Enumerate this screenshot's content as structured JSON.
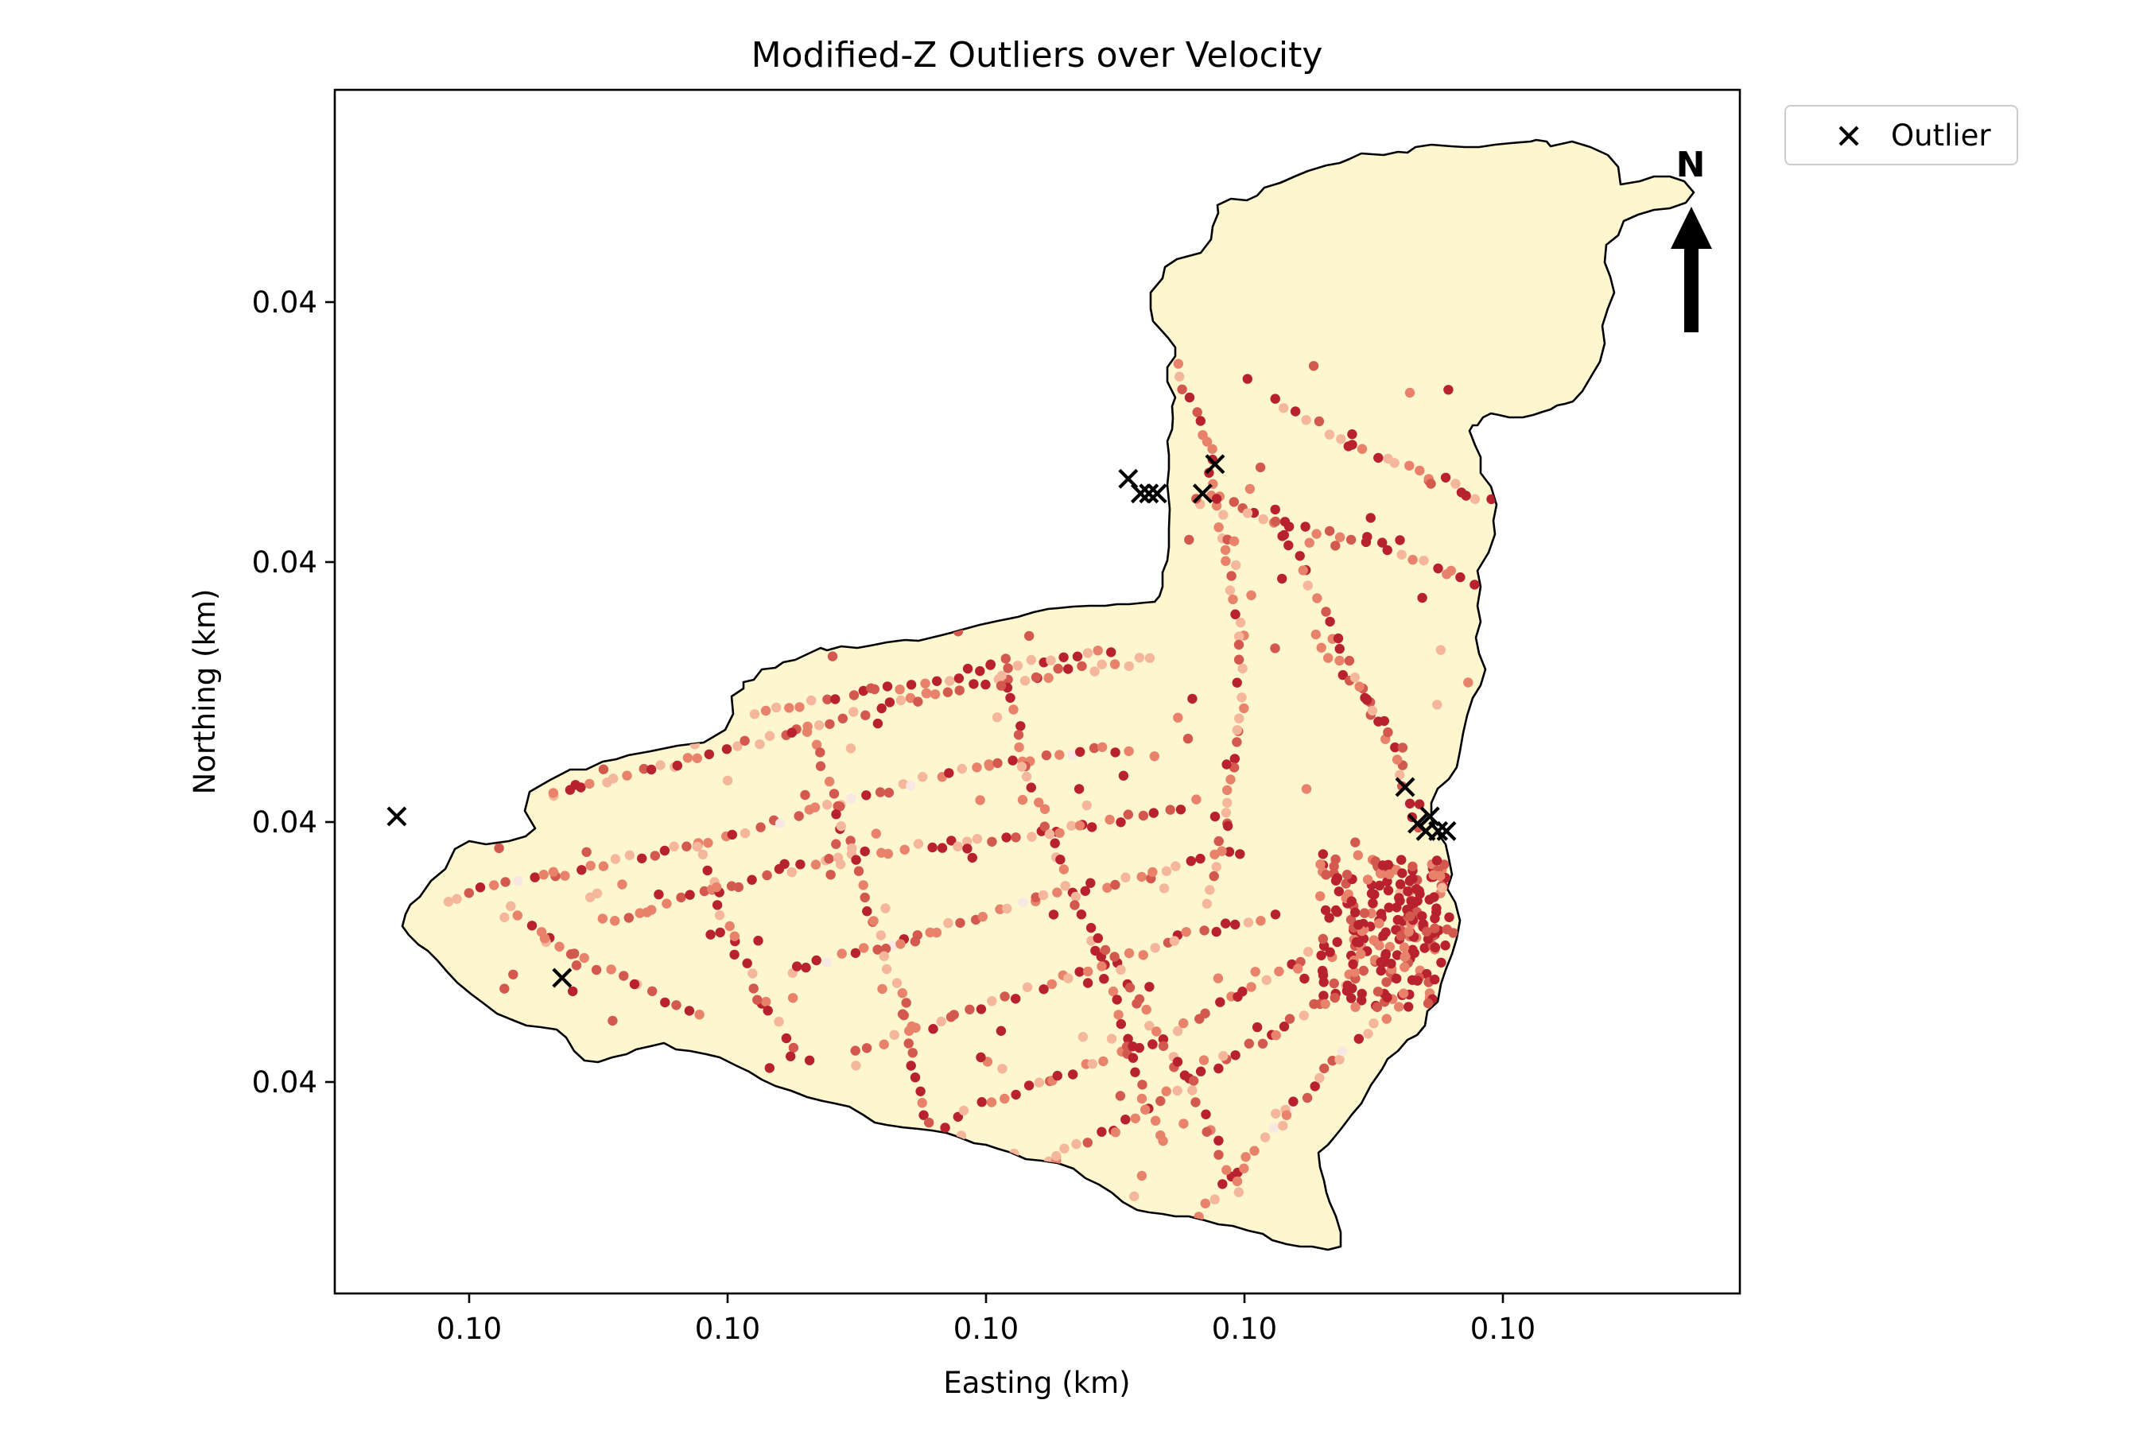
{
  "chart_data": {
    "type": "scatter",
    "title": "Modified-Z Outliers over Velocity",
    "xlabel": "Easting (km)",
    "ylabel": "Northing (km)",
    "x_ticks": [
      "0.10",
      "0.10",
      "0.10",
      "0.10",
      "0.10"
    ],
    "y_ticks": [
      "0.04",
      "0.04",
      "0.04",
      "0.04"
    ],
    "legend": {
      "entries": [
        "Outlier"
      ],
      "placement": "outside upper right"
    },
    "north_arrow": {
      "label": "N"
    },
    "colors": {
      "basin_fill": "#fef6cf",
      "basin_outline": "#000000",
      "velocity_colormap": [
        "#f7e8e4",
        "#f5b79b",
        "#e8826a",
        "#d3584e",
        "#b8222f"
      ],
      "outlier_marker": "#000000"
    },
    "series": [
      {
        "name": "Outlier",
        "marker": "x",
        "points": [
          [
            0.0475,
            0.0472
          ],
          [
            0.0515,
            0.045
          ],
          [
            0.0652,
            0.0518
          ],
          [
            0.0655,
            0.0516
          ],
          [
            0.0657,
            0.0516
          ],
          [
            0.0659,
            0.0516
          ],
          [
            0.067,
            0.0516
          ],
          [
            0.0673,
            0.052
          ],
          [
            0.0719,
            0.0476
          ],
          [
            0.0722,
            0.0471
          ],
          [
            0.0724,
            0.047
          ],
          [
            0.0725,
            0.0472
          ],
          [
            0.0727,
            0.047
          ],
          [
            0.0729,
            0.047
          ]
        ]
      }
    ]
  }
}
